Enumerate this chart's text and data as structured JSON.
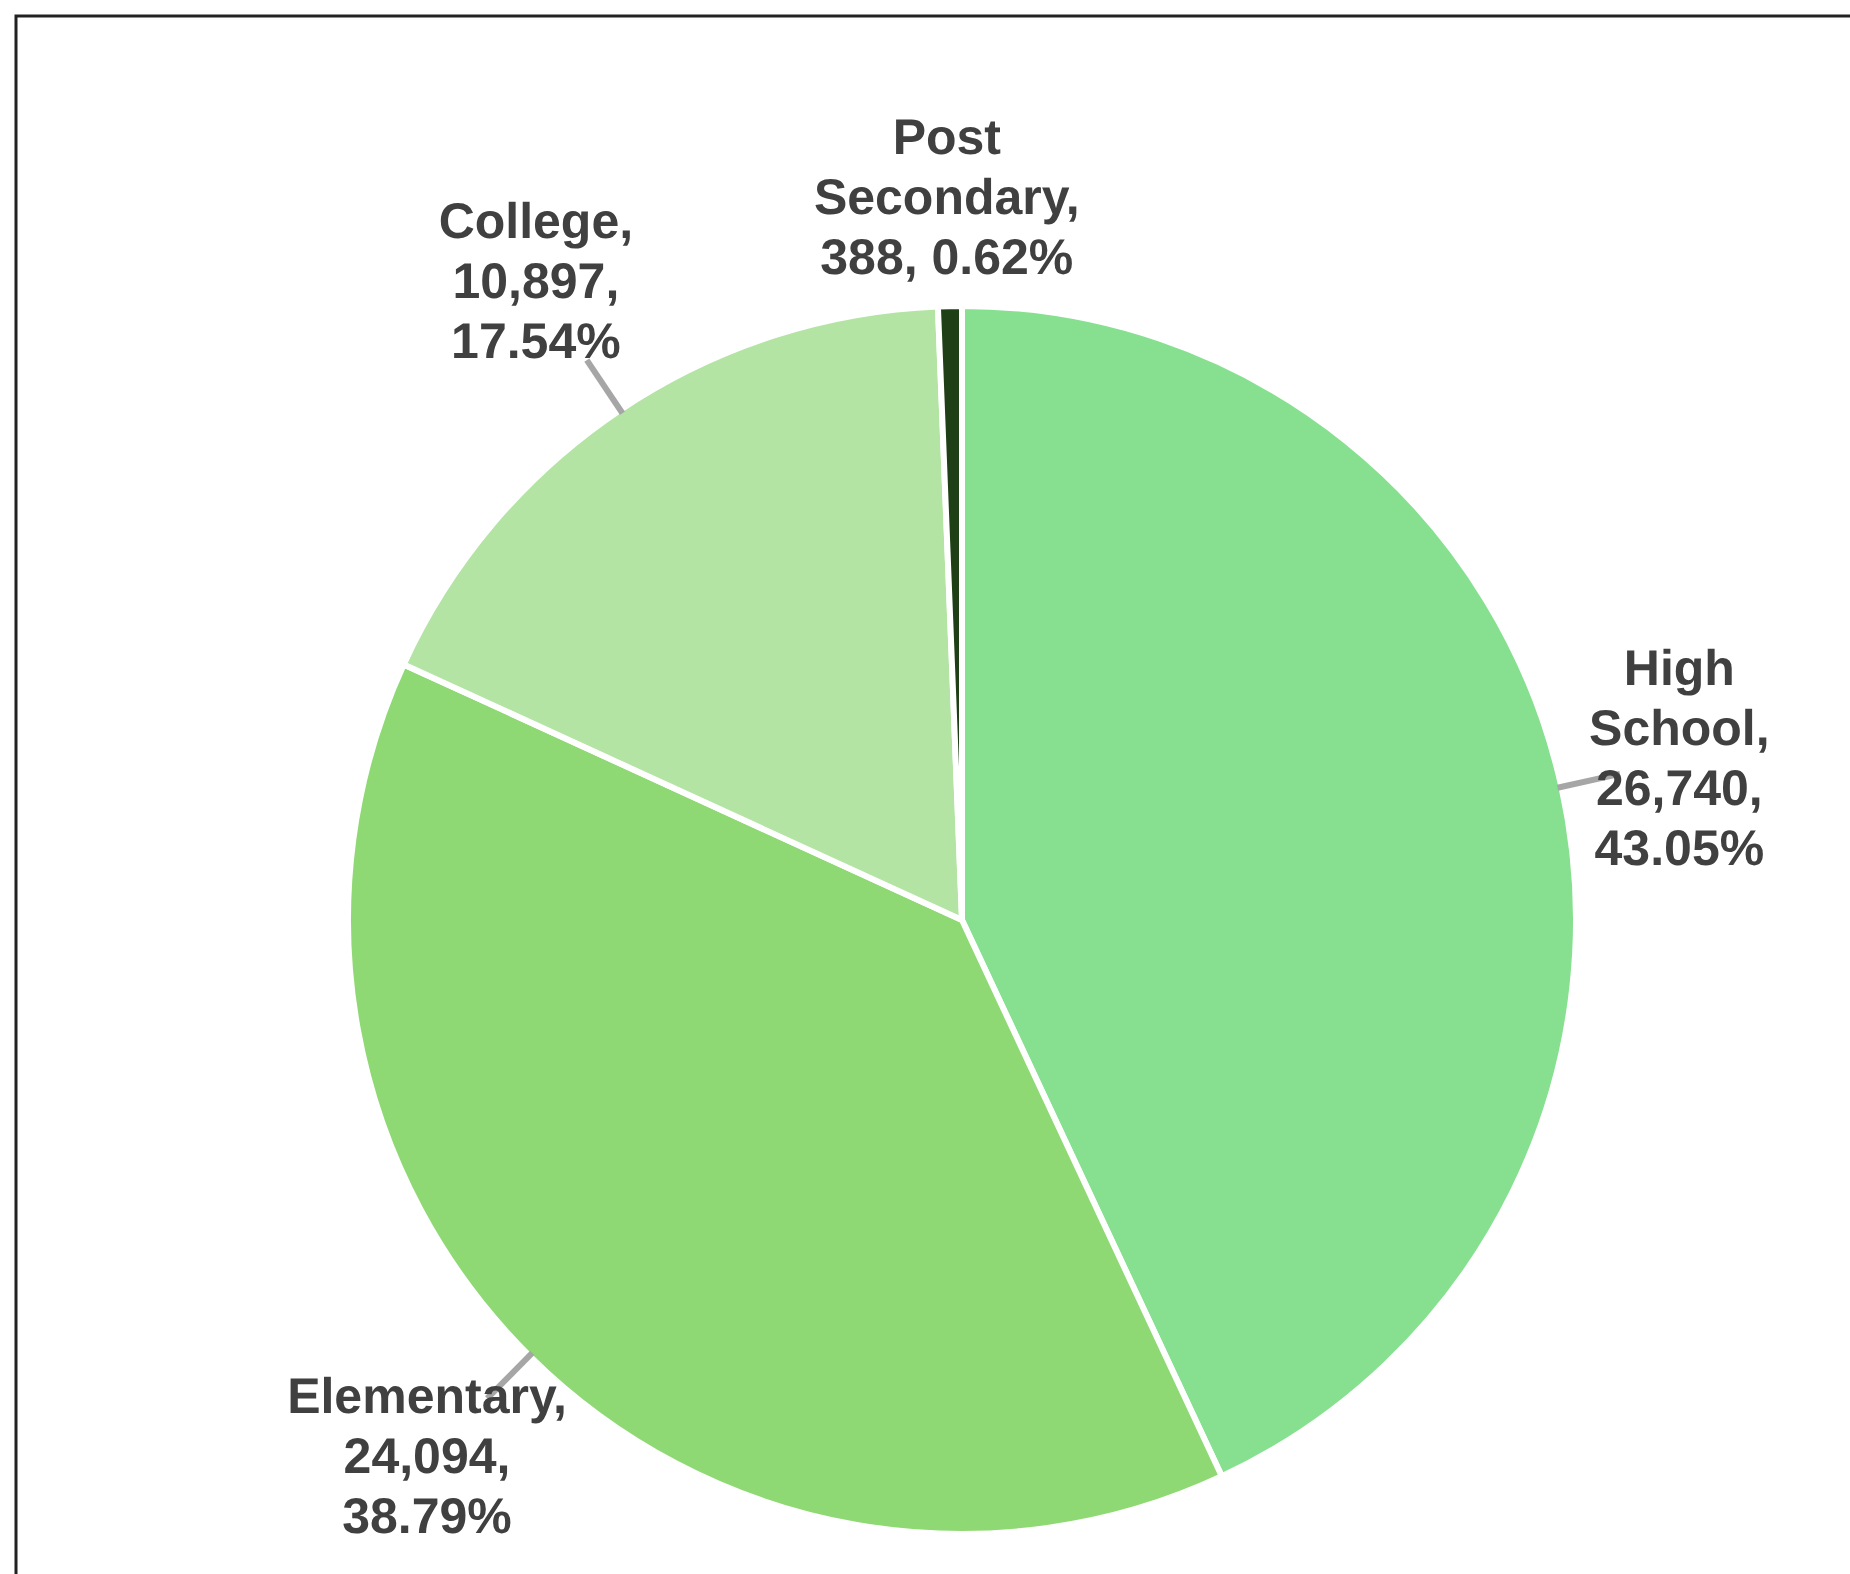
{
  "chart_data": {
    "type": "pie",
    "categories": [
      "High School",
      "Elementary",
      "College",
      "Post Secondary"
    ],
    "values": [
      26740,
      24094,
      10897,
      388
    ],
    "value_labels": [
      ", 26,740, 43.05%",
      ", 24,094, 38.79%",
      ", 10,897, 17.54%",
      ", 388, 0.62%"
    ],
    "colors": [
      "#86e090",
      "#8fd974",
      "#b3e4a4",
      "#1f3f17"
    ]
  }
}
